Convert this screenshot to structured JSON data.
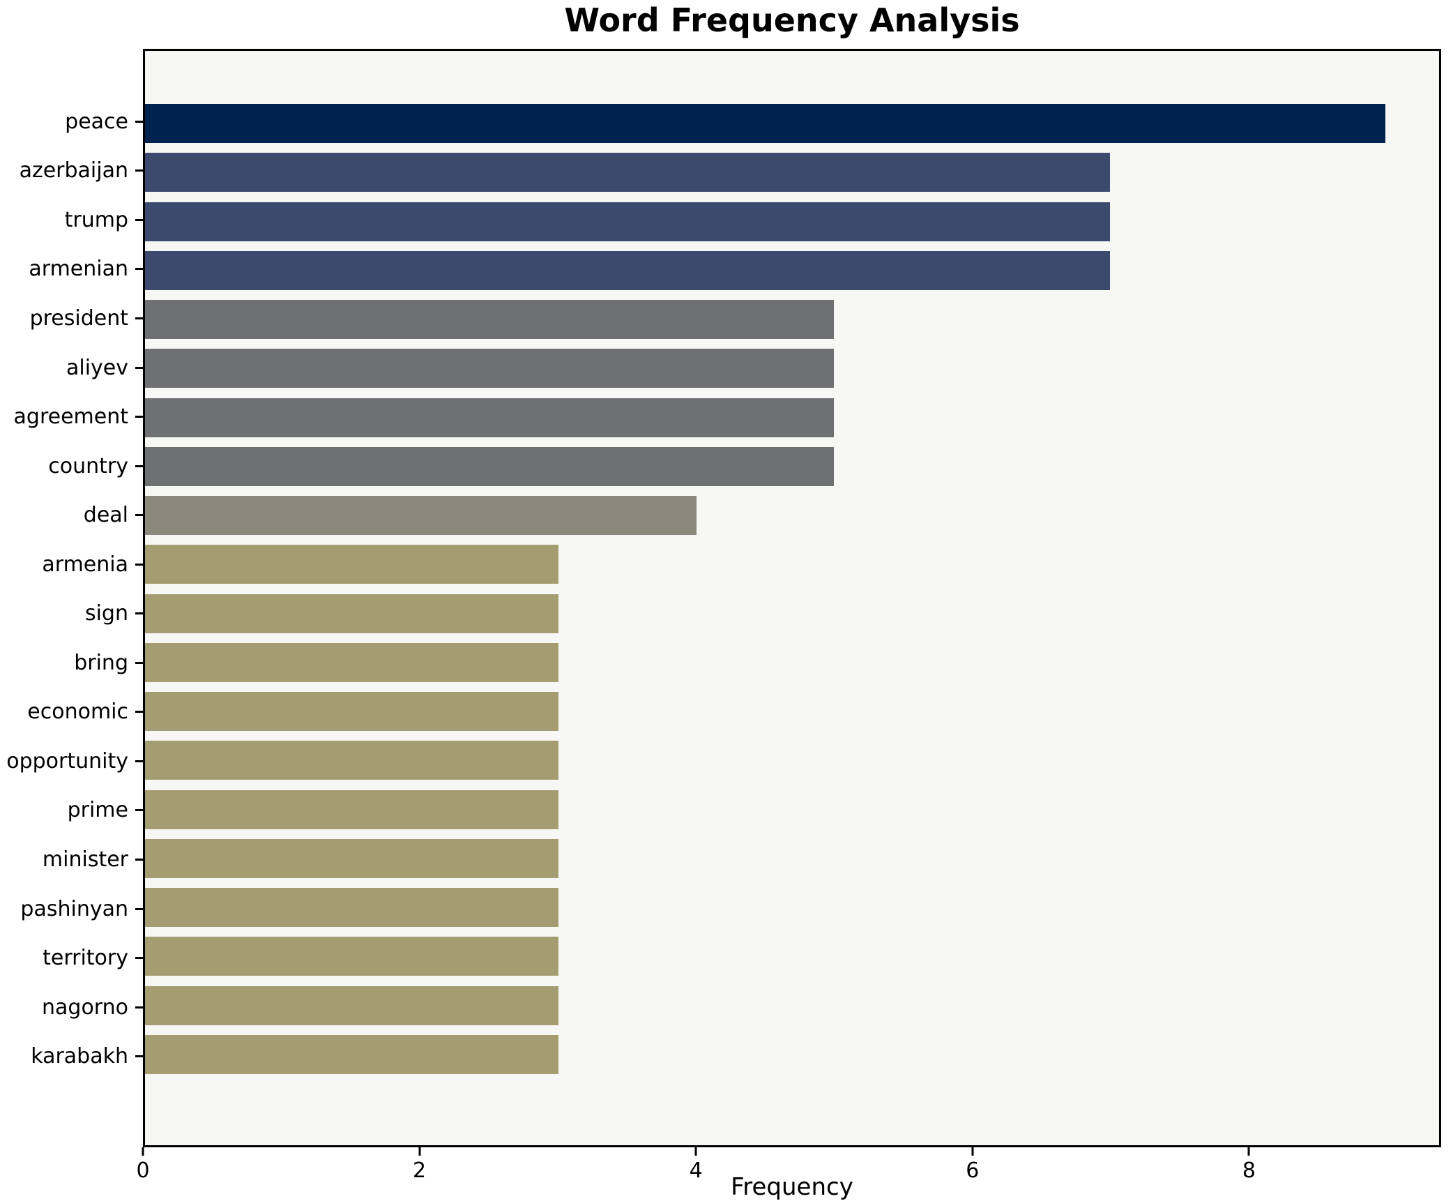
{
  "chart_data": {
    "type": "bar",
    "orientation": "horizontal",
    "title": "Word Frequency Analysis",
    "xlabel": "Frequency",
    "ylabel": "",
    "categories": [
      "peace",
      "azerbaijan",
      "trump",
      "armenian",
      "president",
      "aliyev",
      "agreement",
      "country",
      "deal",
      "armenia",
      "sign",
      "bring",
      "economic",
      "opportunity",
      "prime",
      "minister",
      "pashinyan",
      "territory",
      "nagorno",
      "karabakh"
    ],
    "values": [
      9,
      7,
      7,
      7,
      5,
      5,
      5,
      5,
      4,
      3,
      3,
      3,
      3,
      3,
      3,
      3,
      3,
      3,
      3,
      3
    ],
    "bar_colors": [
      "#00224e",
      "#3c4a6e",
      "#3c4a6e",
      "#3c4a6e",
      "#6f7072",
      "#6f7072",
      "#6f7072",
      "#6f7072",
      "#8b897b",
      "#a59d72",
      "#a59d72",
      "#a59d72",
      "#a59d72",
      "#a59d72",
      "#a59d72",
      "#a59d72",
      "#a59d72",
      "#a59d72",
      "#a59d72",
      "#a59d72"
    ],
    "xlim": [
      0,
      9.39
    ],
    "xticks": [
      0,
      2,
      4,
      6,
      8
    ],
    "grid": false,
    "legend_position": "none",
    "plot_background": "#f7f7f6",
    "figure_background": "#ffffff",
    "axis_color": "#000000",
    "text_color": "#000000"
  }
}
